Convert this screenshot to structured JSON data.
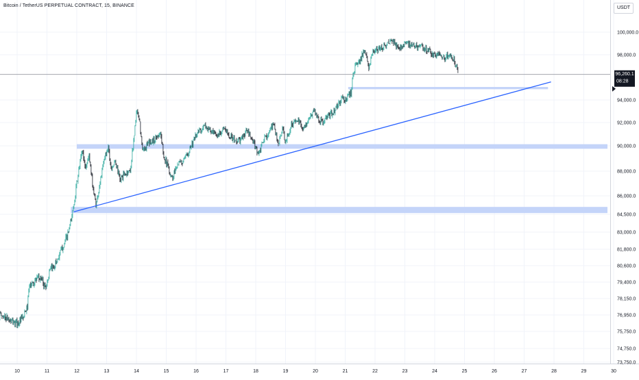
{
  "header": {
    "title": "Bitcoin / TetherUS PERPETUAL CONTRACT, 15, BINANCE",
    "currency": "USDT"
  },
  "last_price": {
    "value": "96,260.1",
    "countdown": "08:28"
  },
  "colors": {
    "up": "#26a69a",
    "down": "#131722",
    "trendline": "#2962ff",
    "zone_fill": "#c4d4f9",
    "grid": "#f0f3fa",
    "axis_text": "#131722",
    "price_line": "#9598a1"
  },
  "chart_data": {
    "type": "candlestick",
    "x_ticks": [
      {
        "label": "10",
        "day": 10
      },
      {
        "label": "11",
        "day": 11
      },
      {
        "label": "12",
        "day": 12
      },
      {
        "label": "13",
        "day": 13
      },
      {
        "label": "14",
        "day": 14
      },
      {
        "label": "15",
        "day": 15
      },
      {
        "label": "16",
        "day": 16
      },
      {
        "label": "17",
        "day": 17
      },
      {
        "label": "18",
        "day": 18
      },
      {
        "label": "19",
        "day": 19
      },
      {
        "label": "20",
        "day": 20
      },
      {
        "label": "21",
        "day": 21
      },
      {
        "label": "22",
        "day": 22
      },
      {
        "label": "23",
        "day": 23
      },
      {
        "label": "24",
        "day": 24
      },
      {
        "label": "25",
        "day": 25
      },
      {
        "label": "26",
        "day": 26
      },
      {
        "label": "27",
        "day": 27
      },
      {
        "label": "28",
        "day": 28
      },
      {
        "label": "29",
        "day": 29
      },
      {
        "label": "30",
        "day": 30
      }
    ],
    "y_ticks": [
      {
        "label": "100,000.0",
        "value": 100000
      },
      {
        "label": "98,000.0",
        "value": 98000
      },
      {
        "label": "94,000.0",
        "value": 94000
      },
      {
        "label": "92,000.0",
        "value": 92000
      },
      {
        "label": "90,000.0",
        "value": 90000
      },
      {
        "label": "88,000.0",
        "value": 88000
      },
      {
        "label": "86,000.0",
        "value": 86000
      },
      {
        "label": "84,500.0",
        "value": 84500
      },
      {
        "label": "83,000.0",
        "value": 83000
      },
      {
        "label": "81,800.0",
        "value": 81800
      },
      {
        "label": "80,600.0",
        "value": 80600
      },
      {
        "label": "79,400.0",
        "value": 79400
      },
      {
        "label": "78,150.0",
        "value": 78150
      },
      {
        "label": "76,950.0",
        "value": 76950
      },
      {
        "label": "75,750.0",
        "value": 75750
      },
      {
        "label": "74,750.0",
        "value": 74750
      },
      {
        "label": "73,750.0",
        "value": 73750
      }
    ],
    "price_path": [
      [
        9.4,
        76950
      ],
      [
        9.6,
        76800
      ],
      [
        9.8,
        76500
      ],
      [
        10.0,
        76300
      ],
      [
        10.2,
        76700
      ],
      [
        10.35,
        77600
      ],
      [
        10.4,
        79000
      ],
      [
        10.6,
        79500
      ],
      [
        10.8,
        79700
      ],
      [
        10.95,
        79000
      ],
      [
        11.1,
        80200
      ],
      [
        11.3,
        80800
      ],
      [
        11.5,
        81800
      ],
      [
        11.7,
        82800
      ],
      [
        11.82,
        84100
      ],
      [
        11.9,
        85300
      ],
      [
        12.0,
        87000
      ],
      [
        12.1,
        88500
      ],
      [
        12.18,
        89700
      ],
      [
        12.3,
        88200
      ],
      [
        12.4,
        89300
      ],
      [
        12.55,
        86600
      ],
      [
        12.65,
        85200
      ],
      [
        12.8,
        87400
      ],
      [
        12.95,
        89200
      ],
      [
        13.05,
        90000
      ],
      [
        13.15,
        88300
      ],
      [
        13.3,
        88700
      ],
      [
        13.45,
        87300
      ],
      [
        13.6,
        87700
      ],
      [
        13.8,
        88100
      ],
      [
        13.95,
        91500
      ],
      [
        14.0,
        93000
      ],
      [
        14.1,
        92200
      ],
      [
        14.2,
        89600
      ],
      [
        14.4,
        90200
      ],
      [
        14.6,
        90500
      ],
      [
        14.8,
        91200
      ],
      [
        14.9,
        89400
      ],
      [
        15.05,
        88400
      ],
      [
        15.2,
        87400
      ],
      [
        15.35,
        88500
      ],
      [
        15.6,
        88800
      ],
      [
        15.8,
        89900
      ],
      [
        15.95,
        90600
      ],
      [
        16.1,
        91300
      ],
      [
        16.3,
        91700
      ],
      [
        16.5,
        91200
      ],
      [
        16.7,
        90800
      ],
      [
        16.9,
        91500
      ],
      [
        17.1,
        91000
      ],
      [
        17.3,
        90400
      ],
      [
        17.5,
        90500
      ],
      [
        17.7,
        91300
      ],
      [
        17.9,
        90400
      ],
      [
        18.1,
        89300
      ],
      [
        18.3,
        90700
      ],
      [
        18.5,
        91300
      ],
      [
        18.6,
        92000
      ],
      [
        18.75,
        90100
      ],
      [
        18.9,
        91500
      ],
      [
        19.0,
        90200
      ],
      [
        19.2,
        91900
      ],
      [
        19.4,
        92200
      ],
      [
        19.6,
        91500
      ],
      [
        19.8,
        92300
      ],
      [
        19.95,
        93200
      ],
      [
        20.1,
        92300
      ],
      [
        20.25,
        92000
      ],
      [
        20.4,
        92500
      ],
      [
        20.6,
        92900
      ],
      [
        20.75,
        93500
      ],
      [
        20.9,
        94200
      ],
      [
        21.0,
        93900
      ],
      [
        21.1,
        94500
      ],
      [
        21.2,
        94600
      ],
      [
        21.25,
        96300
      ],
      [
        21.35,
        97000
      ],
      [
        21.5,
        97600
      ],
      [
        21.6,
        98100
      ],
      [
        21.7,
        97900
      ],
      [
        21.8,
        96800
      ],
      [
        21.9,
        98100
      ],
      [
        22.0,
        98300
      ],
      [
        22.2,
        98600
      ],
      [
        22.4,
        98900
      ],
      [
        22.6,
        99200
      ],
      [
        22.8,
        98500
      ],
      [
        23.0,
        99100
      ],
      [
        23.2,
        98800
      ],
      [
        23.4,
        98800
      ],
      [
        23.6,
        98600
      ],
      [
        23.8,
        98400
      ],
      [
        24.0,
        97900
      ],
      [
        24.2,
        98100
      ],
      [
        24.35,
        97700
      ],
      [
        24.5,
        98000
      ],
      [
        24.65,
        97600
      ],
      [
        24.8,
        96260.1
      ]
    ],
    "zones": [
      {
        "x_start": 12.0,
        "x_end": 30.0,
        "y_low": 89770,
        "y_high": 90140
      },
      {
        "x_start": 11.8,
        "x_end": 30.0,
        "y_low": 84600,
        "y_high": 85100
      },
      {
        "x_start": 21.1,
        "x_end": 27.8,
        "y_low": 94950,
        "y_high": 95150
      }
    ],
    "trendline": {
      "x_start": 11.9,
      "y_start": 84700,
      "x_end": 27.9,
      "y_end": 95600
    },
    "last_price_value": 96260.1
  }
}
